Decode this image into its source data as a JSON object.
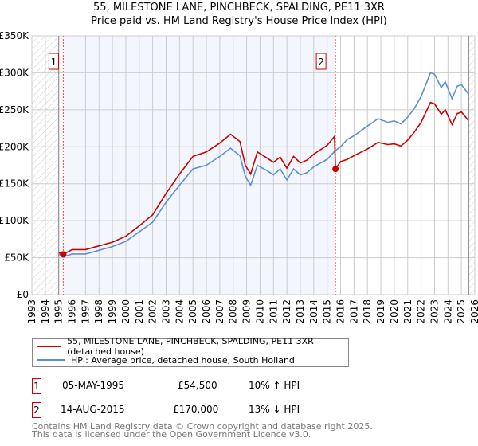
{
  "title": "55, MILESTONE LANE, PINCHBECK, SPALDING, PE11 3XR",
  "subtitle": "Price paid vs. HM Land Registry's House Price Index (HPI)",
  "chart_data": {
    "type": "line",
    "title": "55, MILESTONE LANE, PINCHBECK, SPALDING, PE11 3XR",
    "subtitle": "Price paid vs. HM Land Registry's House Price Index (HPI)",
    "xlim": [
      1993,
      2026
    ],
    "ylim": [
      0,
      350000
    ],
    "grid": true,
    "x_ticks": [
      "1993",
      "1994",
      "1995",
      "1996",
      "1997",
      "1998",
      "1999",
      "2000",
      "2001",
      "2002",
      "2003",
      "2004",
      "2005",
      "2006",
      "2007",
      "2008",
      "2009",
      "2010",
      "2011",
      "2012",
      "2013",
      "2014",
      "2015",
      "2016",
      "2017",
      "2018",
      "2019",
      "2020",
      "2021",
      "2022",
      "2023",
      "2024",
      "2025",
      "2026"
    ],
    "y_ticks": [
      {
        "v": 0,
        "label": "£0"
      },
      {
        "v": 50000,
        "label": "£50K"
      },
      {
        "v": 100000,
        "label": "£100K"
      },
      {
        "v": 150000,
        "label": "£150K"
      },
      {
        "v": 200000,
        "label": "£200K"
      },
      {
        "v": 250000,
        "label": "£250K"
      },
      {
        "v": 300000,
        "label": "£300K"
      },
      {
        "v": 350000,
        "label": "£350K"
      }
    ],
    "series": [
      {
        "name": "55, MILESTONE LANE, PINCHBECK, SPALDING, PE11 3XR (detached house)",
        "color": "#cc0000",
        "x": [
          1995.0,
          1995.34,
          1996,
          1997,
          1998,
          1999,
          2000,
          2001,
          2002,
          2003,
          2004,
          2005,
          2006,
          2007,
          2007.8,
          2008.5,
          2008.9,
          2009.3,
          2009.8,
          2010.5,
          2011,
          2011.5,
          2012,
          2012.5,
          2013,
          2013.5,
          2014,
          2015,
          2015.55,
          2015.62,
          2016,
          2016.5,
          2017,
          2018,
          2018.8,
          2019.5,
          2020,
          2020.5,
          2021,
          2021.5,
          2022,
          2022.7,
          2023,
          2023.5,
          2023.8,
          2024.3,
          2024.7,
          2025,
          2025.5
        ],
        "y": [
          57000,
          54500,
          61000,
          61000,
          66000,
          71000,
          79000,
          93000,
          108000,
          137000,
          163000,
          187000,
          193000,
          205000,
          217000,
          207000,
          175000,
          163000,
          193000,
          185000,
          179000,
          186000,
          171000,
          187000,
          178000,
          182000,
          190000,
          202000,
          214000,
          170000,
          180000,
          183000,
          188000,
          197000,
          206000,
          203000,
          204000,
          201000,
          209000,
          220000,
          233000,
          260000,
          258000,
          244000,
          250000,
          230000,
          245000,
          247000,
          236000
        ]
      },
      {
        "name": "HPI: Average price, detached house, South Holland",
        "color": "#5b8fd4",
        "x": [
          1995.0,
          1995.34,
          1996,
          1997,
          1998,
          1999,
          2000,
          2001,
          2002,
          2003,
          2004,
          2005,
          2006,
          2007,
          2007.8,
          2008.5,
          2008.9,
          2009.3,
          2009.8,
          2010.5,
          2011,
          2011.5,
          2012,
          2012.5,
          2013,
          2013.5,
          2014,
          2015,
          2015.62,
          2016,
          2016.5,
          2017,
          2018,
          2018.8,
          2019.5,
          2020,
          2020.5,
          2021,
          2021.5,
          2022,
          2022.7,
          2023,
          2023.5,
          2023.8,
          2024.3,
          2024.7,
          2025,
          2025.5
        ],
        "y": [
          55000,
          51000,
          55000,
          55000,
          60000,
          65000,
          72000,
          85000,
          98000,
          125000,
          148000,
          170000,
          175000,
          187000,
          198000,
          188000,
          160000,
          148000,
          175000,
          168000,
          162000,
          170000,
          155000,
          170000,
          162000,
          165000,
          173000,
          183000,
          195000,
          200000,
          210000,
          215000,
          228000,
          238000,
          233000,
          235000,
          231000,
          240000,
          252000,
          268000,
          300000,
          298000,
          280000,
          288000,
          265000,
          282000,
          284000,
          272000
        ]
      }
    ],
    "sales": [
      {
        "id": "1",
        "date": "05-MAY-1995",
        "x": 1995.34,
        "price": 54500,
        "price_label": "£54,500",
        "hpi": "10% ↑ HPI"
      },
      {
        "id": "2",
        "date": "14-AUG-2015",
        "x": 2015.62,
        "price": 170000,
        "price_label": "£170,000",
        "hpi": "13% ↓ HPI"
      }
    ],
    "legend_position": "bottom"
  },
  "legend": {
    "red": "55, MILESTONE LANE, PINCHBECK, SPALDING, PE11 3XR (detached house)",
    "blue": "HPI: Average price, detached house, South Holland"
  },
  "footer": {
    "line1": "Contains HM Land Registry data © Crown copyright and database right 2025.",
    "line2": "This data is licensed under the Open Government Licence v3.0."
  }
}
